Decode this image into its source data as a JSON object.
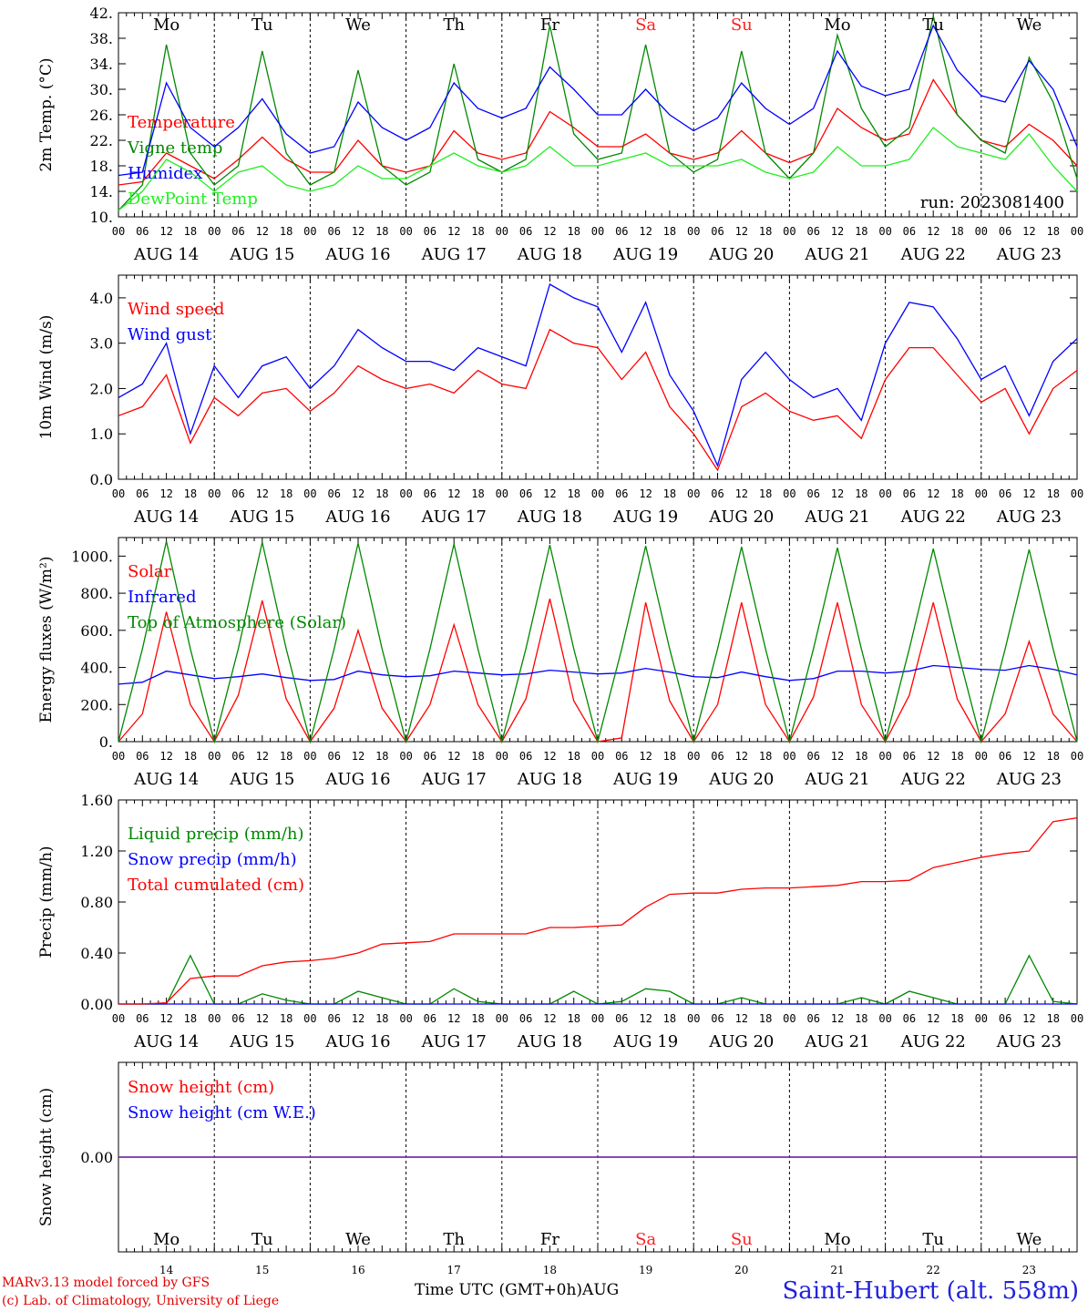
{
  "run_label": "run: 2023081400",
  "day_abbrev": [
    "Mo",
    "Tu",
    "We",
    "Th",
    "Fr",
    "Sa",
    "Su",
    "Mo",
    "Tu",
    "We"
  ],
  "weekend_color": "#ff2020",
  "weekday_color": "#000000",
  "date_labels": [
    "AUG 14",
    "AUG 15",
    "AUG 16",
    "AUG 17",
    "AUG 18",
    "AUG 19",
    "AUG 20",
    "AUG 21",
    "AUG 22",
    "AUG 23"
  ],
  "hour_ticks": [
    "00",
    "06",
    "12",
    "18"
  ],
  "bottom_days": [
    "14",
    "15",
    "16",
    "17",
    "18",
    "19",
    "20",
    "21",
    "22",
    "23"
  ],
  "footer": {
    "credit1": "MARv3.13 model forced by GFS",
    "credit2": "(c) Lab. of Climatology, University of Liege",
    "xaxis": "Time UTC (GMT+0h)",
    "month": "AUG",
    "station": "Saint-Hubert (alt. 558m)"
  },
  "chart_data": [
    {
      "type": "line",
      "ylabel": "2m Temp. (°C)",
      "ylim": [
        10,
        42
      ],
      "yticks": [
        "10.",
        "14.",
        "18.",
        "22.",
        "26.",
        "30.",
        "34.",
        "38.",
        "42."
      ],
      "x_hours": [
        0,
        6,
        12,
        18,
        24,
        30,
        36,
        42,
        48,
        54,
        60,
        66,
        72,
        78,
        84,
        90,
        96,
        102,
        108,
        114,
        120,
        126,
        132,
        138,
        144,
        150,
        156,
        162,
        168,
        174,
        180,
        186,
        192,
        198,
        204,
        210,
        216,
        222,
        228,
        234,
        240
      ],
      "series": [
        {
          "name": "Temperature",
          "color": "#ff0000",
          "values": [
            15,
            15.5,
            20,
            18,
            16,
            19,
            22.5,
            19,
            17,
            17,
            22,
            18,
            17,
            18,
            23.5,
            20,
            19,
            20,
            26.5,
            24,
            21,
            21,
            23,
            20,
            19,
            20,
            23.5,
            20,
            18.5,
            20,
            27,
            24,
            22,
            23,
            31.5,
            26,
            22,
            21,
            24.5,
            22,
            18
          ]
        },
        {
          "name": "Vigne temp",
          "color": "#008800",
          "values": [
            11,
            15,
            37,
            20,
            15,
            18,
            36,
            20,
            15,
            17,
            33,
            18,
            15,
            17,
            34,
            19,
            17,
            19,
            40,
            23,
            19,
            20,
            37,
            20,
            17,
            19,
            36,
            20,
            16,
            20,
            38.5,
            27,
            21,
            24,
            41.5,
            26,
            22,
            20,
            35,
            28,
            16
          ]
        },
        {
          "name": "Humidex",
          "color": "#0000ff",
          "values": [
            16.5,
            17,
            31,
            24,
            21,
            24,
            28.5,
            23,
            20,
            21,
            28,
            24,
            22,
            24,
            31,
            27,
            25.5,
            27,
            33.5,
            30,
            26,
            26,
            30,
            26,
            23.5,
            25.5,
            31,
            27,
            24.5,
            27,
            36,
            30.5,
            29,
            30,
            40,
            33,
            29,
            28,
            34.5,
            30,
            21
          ]
        },
        {
          "name": "DewPoint Temp",
          "color": "#22ee22",
          "values": [
            11,
            14,
            19,
            17,
            14,
            17,
            18,
            15,
            14,
            15,
            18,
            16,
            16,
            18,
            20,
            18,
            17,
            18,
            21,
            18,
            18,
            19,
            20,
            18,
            18,
            18,
            19,
            17,
            16,
            17,
            21,
            18,
            18,
            19,
            24,
            21,
            20,
            19,
            23,
            18,
            14
          ]
        }
      ]
    },
    {
      "type": "line",
      "ylabel": "10m Wind (m/s)",
      "ylim": [
        0,
        4.5
      ],
      "yticks": [
        "0.0",
        "1.0",
        "2.0",
        "3.0",
        "4.0"
      ],
      "x_hours": [
        0,
        6,
        12,
        18,
        24,
        30,
        36,
        42,
        48,
        54,
        60,
        66,
        72,
        78,
        84,
        90,
        96,
        102,
        108,
        114,
        120,
        126,
        132,
        138,
        144,
        150,
        156,
        162,
        168,
        174,
        180,
        186,
        192,
        198,
        204,
        210,
        216,
        222,
        228,
        234,
        240
      ],
      "series": [
        {
          "name": "Wind speed",
          "color": "#ff0000",
          "values": [
            1.4,
            1.6,
            2.3,
            0.8,
            1.8,
            1.4,
            1.9,
            2.0,
            1.5,
            1.9,
            2.5,
            2.2,
            2.0,
            2.1,
            1.9,
            2.4,
            2.1,
            2.0,
            3.3,
            3.0,
            2.9,
            2.2,
            2.8,
            1.6,
            1.0,
            0.2,
            1.6,
            1.9,
            1.5,
            1.3,
            1.4,
            0.9,
            2.2,
            2.9,
            2.9,
            2.3,
            1.7,
            2.0,
            1.0,
            2.0,
            2.4
          ]
        },
        {
          "name": "Wind gust",
          "color": "#0000ff",
          "values": [
            1.8,
            2.1,
            3.0,
            1.0,
            2.5,
            1.8,
            2.5,
            2.7,
            2.0,
            2.5,
            3.3,
            2.9,
            2.6,
            2.6,
            2.4,
            2.9,
            2.7,
            2.5,
            4.3,
            4.0,
            3.8,
            2.8,
            3.9,
            2.3,
            1.5,
            0.3,
            2.2,
            2.8,
            2.2,
            1.8,
            2.0,
            1.3,
            3.0,
            3.9,
            3.8,
            3.1,
            2.2,
            2.5,
            1.4,
            2.6,
            3.1
          ]
        }
      ]
    },
    {
      "type": "line",
      "ylabel": "Energy fluxes (W/m²)",
      "ylim": [
        0,
        1100
      ],
      "yticks": [
        "0.",
        "200.",
        "400.",
        "600.",
        "800.",
        "1000."
      ],
      "x_hours": [
        0,
        6,
        12,
        18,
        24,
        30,
        36,
        42,
        48,
        54,
        60,
        66,
        72,
        78,
        84,
        90,
        96,
        102,
        108,
        114,
        120,
        126,
        132,
        138,
        144,
        150,
        156,
        162,
        168,
        174,
        180,
        186,
        192,
        198,
        204,
        210,
        216,
        222,
        228,
        234,
        240
      ],
      "series": [
        {
          "name": "Solar",
          "color": "#ff0000",
          "values": [
            0,
            150,
            700,
            200,
            0,
            250,
            760,
            230,
            0,
            180,
            600,
            180,
            0,
            200,
            630,
            200,
            0,
            230,
            770,
            220,
            0,
            20,
            750,
            220,
            0,
            200,
            750,
            200,
            0,
            240,
            750,
            200,
            0,
            250,
            750,
            230,
            0,
            150,
            540,
            150,
            0
          ]
        },
        {
          "name": "Infrared",
          "color": "#0000ff",
          "values": [
            310,
            320,
            380,
            360,
            340,
            350,
            365,
            345,
            330,
            335,
            380,
            360,
            350,
            355,
            380,
            370,
            360,
            365,
            385,
            375,
            365,
            370,
            395,
            375,
            350,
            345,
            375,
            350,
            330,
            340,
            380,
            380,
            370,
            380,
            410,
            400,
            390,
            385,
            410,
            390,
            360
          ]
        },
        {
          "name": "Top of Atmosphere (Solar)",
          "color": "#008800",
          "values": [
            0,
            500,
            1080,
            500,
            0,
            500,
            1075,
            500,
            0,
            500,
            1070,
            500,
            0,
            500,
            1065,
            500,
            0,
            500,
            1060,
            500,
            0,
            500,
            1055,
            500,
            0,
            500,
            1050,
            500,
            0,
            500,
            1045,
            500,
            0,
            500,
            1040,
            500,
            0,
            500,
            1035,
            500,
            0
          ]
        }
      ]
    },
    {
      "type": "line",
      "ylabel": "Precip (mm/h)",
      "ylim": [
        0,
        1.6
      ],
      "yticks": [
        "0.00",
        "0.40",
        "0.80",
        "1.20",
        "1.60"
      ],
      "x_hours": [
        0,
        6,
        12,
        18,
        24,
        30,
        36,
        42,
        48,
        54,
        60,
        66,
        72,
        78,
        84,
        90,
        96,
        102,
        108,
        114,
        120,
        126,
        132,
        138,
        144,
        150,
        156,
        162,
        168,
        174,
        180,
        186,
        192,
        198,
        204,
        210,
        216,
        222,
        228,
        234,
        240
      ],
      "series": [
        {
          "name": "Liquid precip (mm/h)",
          "color": "#008800",
          "values": [
            0,
            0,
            0,
            0.38,
            0,
            0,
            0.08,
            0.03,
            0,
            0,
            0.1,
            0.05,
            0,
            0,
            0.12,
            0.02,
            0,
            0,
            0,
            0.1,
            0,
            0.02,
            0.12,
            0.1,
            0,
            0,
            0.05,
            0,
            0,
            0,
            0,
            0.05,
            0,
            0.1,
            0.05,
            0,
            0,
            0,
            0.38,
            0.02,
            0
          ]
        },
        {
          "name": "Snow precip (mm/h)",
          "color": "#0000ff",
          "values": [
            0,
            0,
            0,
            0,
            0,
            0,
            0,
            0,
            0,
            0,
            0,
            0,
            0,
            0,
            0,
            0,
            0,
            0,
            0,
            0,
            0,
            0,
            0,
            0,
            0,
            0,
            0,
            0,
            0,
            0,
            0,
            0,
            0,
            0,
            0,
            0,
            0,
            0,
            0,
            0,
            0
          ]
        },
        {
          "name": "Total cumulated (cm)",
          "color": "#ff0000",
          "values": [
            0,
            0,
            0.01,
            0.2,
            0.22,
            0.22,
            0.3,
            0.33,
            0.34,
            0.36,
            0.4,
            0.47,
            0.48,
            0.49,
            0.55,
            0.55,
            0.55,
            0.55,
            0.6,
            0.6,
            0.61,
            0.62,
            0.76,
            0.86,
            0.87,
            0.87,
            0.9,
            0.91,
            0.91,
            0.92,
            0.93,
            0.96,
            0.96,
            0.97,
            1.07,
            1.11,
            1.15,
            1.18,
            1.2,
            1.43,
            1.46
          ]
        }
      ]
    },
    {
      "type": "line",
      "ylabel": "Snow height (cm)",
      "ylim": [
        -1,
        1
      ],
      "yticks": [
        "0.00"
      ],
      "x_hours": [
        0,
        240
      ],
      "series": [
        {
          "name": "Snow height (cm)",
          "color": "#ff0000",
          "values": [
            0,
            0
          ]
        },
        {
          "name": "Snow height (cm W.E.)",
          "color": "#0000ff",
          "values": [
            0,
            0
          ]
        }
      ]
    }
  ]
}
